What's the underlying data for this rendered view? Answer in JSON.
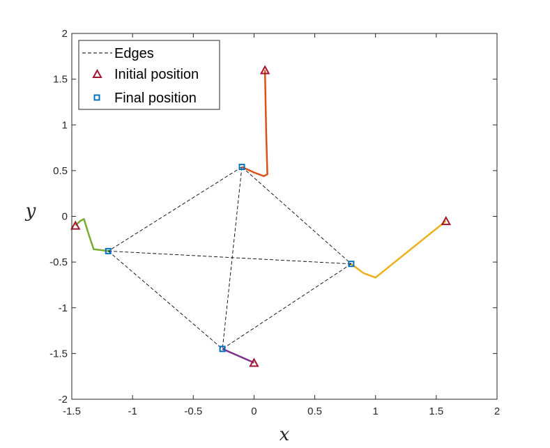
{
  "chart_data": {
    "type": "line",
    "xlabel": "x",
    "ylabel": "y",
    "xlim": [
      -1.5,
      2
    ],
    "ylim": [
      -2,
      2
    ],
    "x_ticks": [
      -1.5,
      -1,
      -0.5,
      0,
      0.5,
      1,
      1.5,
      2
    ],
    "y_ticks": [
      -2,
      -1.5,
      -1,
      -0.5,
      0,
      0.5,
      1,
      1.5,
      2
    ],
    "grid": false,
    "legend_position": "top-left",
    "legend": [
      {
        "label": "Edges",
        "marker": "dashed-line"
      },
      {
        "label": "Initial position",
        "marker": "triangle"
      },
      {
        "label": "Final position",
        "marker": "square"
      }
    ],
    "colors": {
      "initial_marker": "#A2142F",
      "final_marker": "#0072BD",
      "edges": "#000000"
    },
    "trajectories": [
      {
        "color": "#D95319",
        "points": [
          [
            0.09,
            1.6
          ],
          [
            0.1,
            0.9
          ],
          [
            0.11,
            0.46
          ],
          [
            0.08,
            0.44
          ],
          [
            0.0,
            0.48
          ],
          [
            -0.1,
            0.54
          ]
        ]
      },
      {
        "color": "#77AC30",
        "points": [
          [
            -1.47,
            -0.1
          ],
          [
            -1.43,
            -0.05
          ],
          [
            -1.4,
            -0.03
          ],
          [
            -1.36,
            -0.2
          ],
          [
            -1.32,
            -0.36
          ],
          [
            -1.25,
            -0.37
          ],
          [
            -1.2,
            -0.38
          ]
        ]
      },
      {
        "color": "#EDB120",
        "points": [
          [
            1.58,
            -0.05
          ],
          [
            1.3,
            -0.35
          ],
          [
            1.0,
            -0.67
          ],
          [
            0.9,
            -0.62
          ],
          [
            0.8,
            -0.52
          ]
        ]
      },
      {
        "color": "#7E2F8E",
        "points": [
          [
            0.0,
            -1.6
          ],
          [
            -0.26,
            -1.45
          ]
        ]
      }
    ],
    "initial_positions": [
      [
        0.09,
        1.6
      ],
      [
        -1.47,
        -0.1
      ],
      [
        1.58,
        -0.05
      ],
      [
        0.0,
        -1.6
      ]
    ],
    "final_positions": [
      [
        -0.1,
        0.54
      ],
      [
        -1.2,
        -0.38
      ],
      [
        0.8,
        -0.52
      ],
      [
        -0.26,
        -1.45
      ]
    ],
    "edges": [
      [
        0,
        1
      ],
      [
        0,
        2
      ],
      [
        0,
        3
      ],
      [
        1,
        2
      ],
      [
        1,
        3
      ],
      [
        2,
        3
      ]
    ]
  }
}
